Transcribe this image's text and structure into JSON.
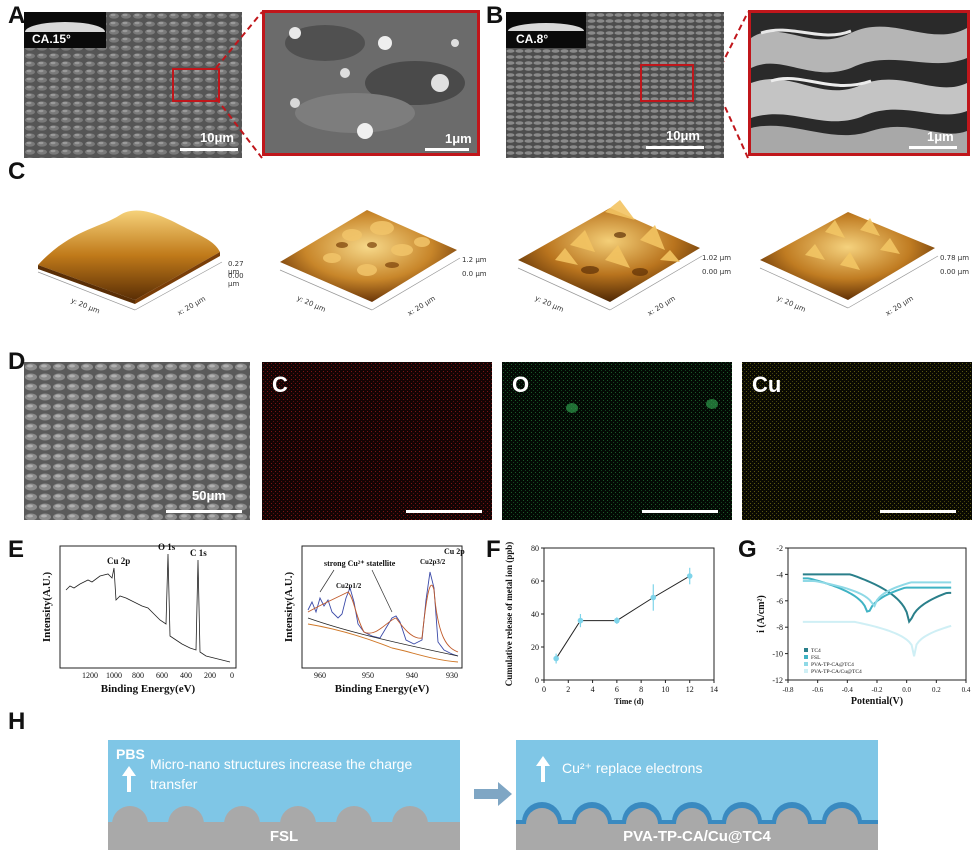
{
  "panelA": {
    "label": "A",
    "contact_angle": "CA.15°",
    "scale_main": "10μm",
    "scale_zoom": "1μm"
  },
  "panelB": {
    "label": "B",
    "contact_angle": "CA.8°",
    "scale_main": "10μm",
    "scale_zoom": "1μm"
  },
  "panelC": {
    "label": "C",
    "plots": [
      {
        "z_top": "0.27 μm",
        "z_bottom": "0.00 μm",
        "y_axis": "y: 20 μm",
        "x_axis": "x: 20 μm"
      },
      {
        "z_top": "1.2 μm",
        "z_bottom": "0.0 μm",
        "y_axis": "y: 20 μm",
        "x_axis": "x: 20 μm"
      },
      {
        "z_top": "1.02 μm",
        "z_bottom": "0.00 μm",
        "y_axis": "y: 20 μm",
        "x_axis": "x: 20 μm"
      },
      {
        "z_top": "0.78 μm",
        "z_bottom": "0.00 μm",
        "y_axis": "y: 20 μm",
        "x_axis": "x: 20 μm"
      }
    ]
  },
  "panelD": {
    "label": "D",
    "scale": "50μm",
    "elements": [
      "C",
      "O",
      "Cu"
    ],
    "colors": {
      "C": "#c81e1e",
      "O": "#2e9a4a",
      "Cu": "#b9b400"
    }
  },
  "panelE": {
    "label": "E",
    "survey": {
      "ylabel": "Intensity(A.U.)",
      "xlabel": "Binding Energy(eV)",
      "ticks": [
        "1200",
        "1000",
        "800",
        "600",
        "400",
        "200",
        "0"
      ],
      "peaks": [
        "Cu 2p",
        "O 1s",
        "C 1s"
      ]
    },
    "cu2p": {
      "ylabel": "Intensity(A.U.)",
      "xlabel": "Binding Energy(eV)",
      "ticks": [
        "960",
        "950",
        "940",
        "930"
      ],
      "annotation": "strong Cu²⁺ statellite",
      "peaks": [
        "Cu2p1/2",
        "Cu2p3/2",
        "Cu 2p"
      ]
    }
  },
  "panelF": {
    "label": "F",
    "chart_data": {
      "type": "line",
      "x": [
        1,
        3,
        6,
        9,
        12
      ],
      "values": [
        13,
        36,
        36,
        50,
        63
      ],
      "errors": [
        3,
        4,
        2,
        8,
        5
      ],
      "xlabel": "Time (d)",
      "ylabel": "Cumulative release of metal ion (ppb)",
      "xlim": [
        0,
        14
      ],
      "ylim": [
        0,
        80
      ],
      "xticks": [
        0,
        2,
        4,
        6,
        8,
        10,
        12,
        14
      ],
      "yticks": [
        0,
        20,
        40,
        60,
        80
      ],
      "color": "#7fd4ea"
    }
  },
  "panelG": {
    "label": "G",
    "chart_data": {
      "type": "line",
      "xlabel": "Potential(V)",
      "ylabel": "i (A/cm²)",
      "xlim": [
        -0.8,
        0.4
      ],
      "ylim": [
        -12,
        -2
      ],
      "xticks": [
        "-0.8",
        "-0.6",
        "-0.4",
        "-0.2",
        "0.0",
        "0.2",
        "0.4"
      ],
      "yticks": [
        "-2",
        "-4",
        "-6",
        "-8",
        "-10",
        "-12"
      ],
      "series": [
        {
          "name": "TC4",
          "color": "#2a7f8a",
          "ecorr": 0.02,
          "floor": -8.4,
          "left": -4.0,
          "right": -5.4
        },
        {
          "name": "FSL",
          "color": "#3fb3c4",
          "ecorr": -0.26,
          "floor": -7.6,
          "left": -4.3,
          "right": -5.0
        },
        {
          "name": "PVA-TP-CA@TC4",
          "color": "#8fd9e6",
          "ecorr": -0.22,
          "floor": -6.9,
          "left": -4.5,
          "right": -4.6
        },
        {
          "name": "PVA-TP-CA/Cu@TC4",
          "color": "#cfeff5",
          "ecorr": 0.05,
          "floor": -10.2,
          "left": -7.6,
          "right": -7.9
        }
      ]
    }
  },
  "panelH": {
    "label": "H",
    "left": {
      "medium": "PBS",
      "text": "Micro-nano structures increase the charge transfer",
      "substrate": "FSL"
    },
    "right": {
      "text": "Cu²⁺ replace electrons",
      "substrate": "PVA-TP-CA/Cu@TC4"
    }
  }
}
